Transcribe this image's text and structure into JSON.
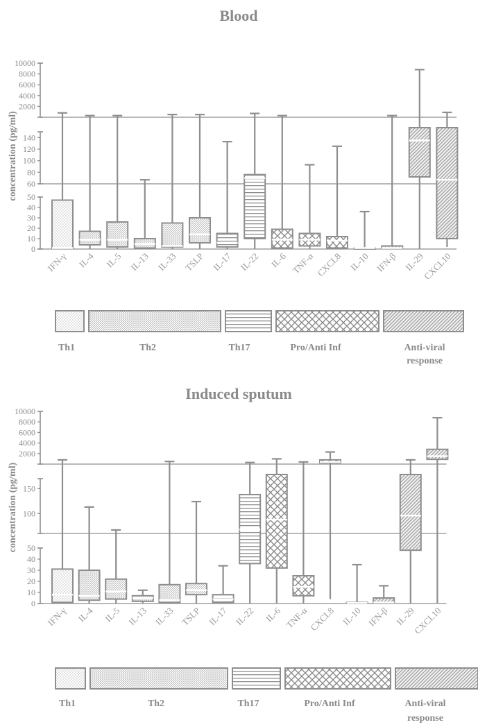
{
  "chart_data": [
    {
      "type": "box",
      "title": "Blood",
      "ylabel": "concentration (pg/ml)",
      "y_scale": "broken",
      "y_segments": [
        {
          "range": [
            0,
            50
          ],
          "ticks": [
            0,
            10,
            20,
            30,
            40,
            50
          ]
        },
        {
          "range": [
            60,
            150
          ],
          "ticks": [
            60,
            80,
            100,
            120,
            140
          ]
        },
        {
          "range": [
            0,
            10000
          ],
          "ticks": [
            2000,
            4000,
            6000,
            8000,
            10000
          ]
        }
      ],
      "categories": [
        "IFN-γ",
        "IL-4",
        "IL-5",
        "IL-13",
        "IL-33",
        "TSLP",
        "IL-17",
        "IL-22",
        "IL-6",
        "TNF-α",
        "CXCL8",
        "IL-10",
        "IFN-β",
        "IL-29",
        "CXCL10"
      ],
      "boxes": [
        {
          "category": "IFN-γ",
          "min": 0,
          "q1": 1,
          "median": 1,
          "q3": 47,
          "max": 800,
          "pattern": "dots"
        },
        {
          "category": "IL-4",
          "min": 0,
          "q1": 4,
          "median": 9,
          "q3": 17,
          "max": 300,
          "pattern": "dense"
        },
        {
          "category": "IL-5",
          "min": 0,
          "q1": 2,
          "median": 9,
          "q3": 26,
          "max": 300,
          "pattern": "dense"
        },
        {
          "category": "IL-13",
          "min": 0,
          "q1": 1,
          "median": 5,
          "q3": 10,
          "max": 67,
          "pattern": "dense"
        },
        {
          "category": "IL-33",
          "min": 0,
          "q1": 2,
          "median": 3,
          "q3": 25,
          "max": 500,
          "pattern": "dense"
        },
        {
          "category": "TSLP",
          "min": 0,
          "q1": 6,
          "median": 14,
          "q3": 30,
          "max": 500,
          "pattern": "dense"
        },
        {
          "category": "IL-17",
          "min": 0,
          "q1": 2,
          "median": 6,
          "q3": 15,
          "max": 133,
          "pattern": "hlines"
        },
        {
          "category": "IL-22",
          "min": 0,
          "q1": 10,
          "median": 70,
          "q3": 76,
          "max": 700,
          "pattern": "hlines"
        },
        {
          "category": "IL-6",
          "min": 0,
          "q1": 1,
          "median": 9,
          "q3": 19,
          "max": 300,
          "pattern": "cross"
        },
        {
          "category": "TNF-α",
          "min": 0,
          "q1": 3,
          "median": 9,
          "q3": 15,
          "max": 93,
          "pattern": "cross"
        },
        {
          "category": "CXCL8",
          "min": 0,
          "q1": 1,
          "median": 8,
          "q3": 12,
          "max": 125,
          "pattern": "cross"
        },
        {
          "category": "IL-10",
          "min": 0,
          "q1": 0.5,
          "median": 1,
          "q3": 1,
          "max": 36,
          "pattern": "cross"
        },
        {
          "category": "IFN-β",
          "min": 0,
          "q1": 0.5,
          "median": 1,
          "q3": 3,
          "max": 300,
          "pattern": "diag"
        },
        {
          "category": "IL-29",
          "min": 0,
          "q1": 72,
          "median": 135,
          "q3": "150+",
          "max": 8800,
          "pattern": "diag"
        },
        {
          "category": "CXCL10",
          "min": 2,
          "q1": 10,
          "median": 67,
          "q3": "150+",
          "max": 900,
          "pattern": "diag"
        }
      ],
      "groups": [
        {
          "label": "Th1",
          "pattern": "dots"
        },
        {
          "label": "Th2",
          "pattern": "dense"
        },
        {
          "label": "Th17",
          "pattern": "hlines"
        },
        {
          "label": "Pro/Anti Inf",
          "pattern": "cross"
        },
        {
          "label": "Anti-viral response",
          "lines": [
            "Anti-viral",
            "response"
          ],
          "pattern": "diag"
        }
      ]
    },
    {
      "type": "box",
      "title": "Induced sputum",
      "ylabel": "concentration (pg/ml)",
      "y_scale": "broken",
      "y_segments": [
        {
          "range": [
            0,
            50
          ],
          "ticks": [
            0,
            10,
            20,
            30,
            40,
            50
          ]
        },
        {
          "range": [
            60,
            170
          ],
          "ticks": [
            100,
            150
          ]
        },
        {
          "range": [
            0,
            10000
          ],
          "ticks": [
            2000,
            4000,
            6000,
            8000,
            10000
          ]
        }
      ],
      "categories": [
        "IFN-γ",
        "IL-4",
        "IL-5",
        "IL-13",
        "IL-33",
        "TSLP",
        "IL-17",
        "IL-22",
        "IL-6",
        "TNF-α",
        "CXCL8",
        "IL-10",
        "IFN-β",
        "IL-29",
        "CXCL10"
      ],
      "boxes": [
        {
          "category": "IFN-γ",
          "min": 0,
          "q1": 1,
          "median": 8,
          "q3": 31,
          "max": 800,
          "pattern": "dots"
        },
        {
          "category": "IL-4",
          "min": 0,
          "q1": 3,
          "median": 7,
          "q3": 30,
          "max": 113,
          "pattern": "dense"
        },
        {
          "category": "IL-5",
          "min": 0,
          "q1": 4,
          "median": 11,
          "q3": 22,
          "max": 67,
          "pattern": "dense"
        },
        {
          "category": "IL-13",
          "min": 0,
          "q1": 2,
          "median": 5,
          "q3": 7,
          "max": 12,
          "pattern": "dense"
        },
        {
          "category": "IL-33",
          "min": 0,
          "q1": 1,
          "median": 3,
          "q3": 17,
          "max": 500,
          "pattern": "dense"
        },
        {
          "category": "TSLP",
          "min": 0,
          "q1": 8,
          "median": 12,
          "q3": 18,
          "max": 124,
          "pattern": "dense"
        },
        {
          "category": "IL-17",
          "min": 0,
          "q1": 1,
          "median": 4,
          "q3": 8,
          "max": 34,
          "pattern": "hlines"
        },
        {
          "category": "IL-22",
          "min": 0,
          "q1": 36,
          "median": 68,
          "q3": 138,
          "max": 300,
          "pattern": "hlines"
        },
        {
          "category": "IL-6",
          "min": 0,
          "q1": 32,
          "median": 88,
          "q3": "170+",
          "max": 1000,
          "pattern": "cross"
        },
        {
          "category": "TNF-α",
          "min": 0,
          "q1": 7,
          "median": 15,
          "q3": 25,
          "max": 400,
          "pattern": "cross"
        },
        {
          "category": "CXCL8",
          "min": 4,
          "q1": 250,
          "median": 400,
          "q3": 800,
          "max": 2300,
          "pattern": "cross"
        },
        {
          "category": "IL-10",
          "min": 0,
          "q1": 0.3,
          "median": 0.5,
          "q3": 1,
          "max": 35,
          "pattern": "cross"
        },
        {
          "category": "IFN-β",
          "min": 0,
          "q1": 0.5,
          "median": 1,
          "q3": 5,
          "max": 16,
          "pattern": "diag"
        },
        {
          "category": "IL-29",
          "min": 0,
          "q1": 48,
          "median": 96,
          "q3": "170+",
          "max": 800,
          "pattern": "diag"
        },
        {
          "category": "CXCL10",
          "min": 0,
          "q1": 900,
          "median": 1500,
          "q3": 2800,
          "max": 8800,
          "pattern": "diag"
        }
      ],
      "groups": [
        {
          "label": "Th1",
          "pattern": "dots"
        },
        {
          "label": "Th2",
          "pattern": "dense"
        },
        {
          "label": "Th17",
          "pattern": "hlines"
        },
        {
          "label": "Pro/Anti Inf",
          "pattern": "cross"
        },
        {
          "label": "Anti-viral response",
          "lines": [
            "Anti-viral",
            "response"
          ],
          "pattern": "diag"
        }
      ]
    }
  ]
}
